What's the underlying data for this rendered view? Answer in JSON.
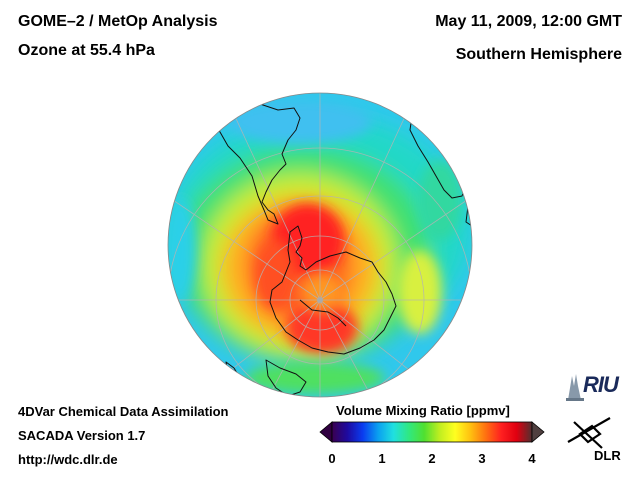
{
  "header": {
    "title_line1": "GOME–2 / MetOp Analysis",
    "title_line2": "Ozone at 55.4 hPa",
    "date": "May 11, 2009, 12:00 GMT",
    "region": "Southern Hemisphere"
  },
  "footer": {
    "line1": "4DVar Chemical Data Assimilation",
    "line2": "SACADA Version 1.7",
    "line3": "http://wdc.dlr.de"
  },
  "colorbar": {
    "title": "Volume Mixing Ratio [ppmv]",
    "ticks": [
      "0",
      "1",
      "2",
      "3",
      "4"
    ],
    "range": [
      0,
      4
    ],
    "colors": [
      "#3a0050",
      "#1e0aa0",
      "#0a3cf0",
      "#0aa0f0",
      "#20e0e0",
      "#30e880",
      "#50e030",
      "#c0ee20",
      "#ffff20",
      "#ffc010",
      "#ff7010",
      "#ff2020",
      "#e00010",
      "#503030"
    ]
  },
  "logos": {
    "riu": "RIU",
    "dlr": "DLR"
  }
}
